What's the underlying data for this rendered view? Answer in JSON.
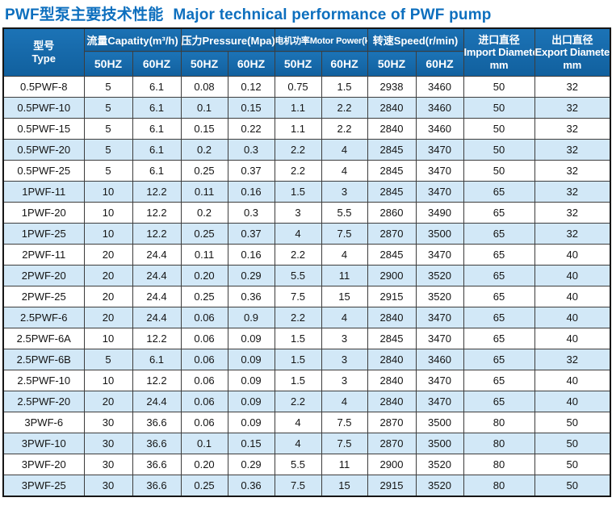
{
  "title": {
    "zh": "PWF型泵主要技术性能",
    "en": "Major technical performance of PWF pump"
  },
  "colors": {
    "title_text": "#0d6fbe",
    "header_bg": "#1467ac",
    "row_alt_bg": "#d2e8f7",
    "grid_line": "#3d3d3d"
  },
  "table": {
    "col_type": {
      "zh": "型号",
      "en": "Type"
    },
    "groups": [
      {
        "label": "流量Capatity(m³/h)",
        "sub": [
          "50HZ",
          "60HZ"
        ]
      },
      {
        "label": "压力Pressure(Mpa)",
        "sub": [
          "50HZ",
          "60HZ"
        ]
      },
      {
        "label": "电机功率Motor Power(kw)",
        "sub": [
          "50HZ",
          "60HZ"
        ]
      },
      {
        "label": "转速Speed(r/min)",
        "sub": [
          "50HZ",
          "60HZ"
        ]
      }
    ],
    "col_import": {
      "zh": "进口直径",
      "en": "Import Diameter",
      "unit": "mm"
    },
    "col_export": {
      "zh": "出口直径",
      "en": "Export Diameter",
      "unit": "mm"
    },
    "rows": [
      [
        "0.5PWF-8",
        "5",
        "6.1",
        "0.08",
        "0.12",
        "0.75",
        "1.5",
        "2938",
        "3460",
        "50",
        "32"
      ],
      [
        "0.5PWF-10",
        "5",
        "6.1",
        "0.1",
        "0.15",
        "1.1",
        "2.2",
        "2840",
        "3460",
        "50",
        "32"
      ],
      [
        "0.5PWF-15",
        "5",
        "6.1",
        "0.15",
        "0.22",
        "1.1",
        "2.2",
        "2840",
        "3460",
        "50",
        "32"
      ],
      [
        "0.5PWF-20",
        "5",
        "6.1",
        "0.2",
        "0.3",
        "2.2",
        "4",
        "2845",
        "3470",
        "50",
        "32"
      ],
      [
        "0.5PWF-25",
        "5",
        "6.1",
        "0.25",
        "0.37",
        "2.2",
        "4",
        "2845",
        "3470",
        "50",
        "32"
      ],
      [
        "1PWF-11",
        "10",
        "12.2",
        "0.11",
        "0.16",
        "1.5",
        "3",
        "2845",
        "3470",
        "65",
        "32"
      ],
      [
        "1PWF-20",
        "10",
        "12.2",
        "0.2",
        "0.3",
        "3",
        "5.5",
        "2860",
        "3490",
        "65",
        "32"
      ],
      [
        "1PWF-25",
        "10",
        "12.2",
        "0.25",
        "0.37",
        "4",
        "7.5",
        "2870",
        "3500",
        "65",
        "32"
      ],
      [
        "2PWF-11",
        "20",
        "24.4",
        "0.11",
        "0.16",
        "2.2",
        "4",
        "2845",
        "3470",
        "65",
        "40"
      ],
      [
        "2PWF-20",
        "20",
        "24.4",
        "0.20",
        "0.29",
        "5.5",
        "11",
        "2900",
        "3520",
        "65",
        "40"
      ],
      [
        "2PWF-25",
        "20",
        "24.4",
        "0.25",
        "0.36",
        "7.5",
        "15",
        "2915",
        "3520",
        "65",
        "40"
      ],
      [
        "2.5PWF-6",
        "20",
        "24.4",
        "0.06",
        "0.9",
        "2.2",
        "4",
        "2840",
        "3470",
        "65",
        "40"
      ],
      [
        "2.5PWF-6A",
        "10",
        "12.2",
        "0.06",
        "0.09",
        "1.5",
        "3",
        "2845",
        "3470",
        "65",
        "40"
      ],
      [
        "2.5PWF-6B",
        "5",
        "6.1",
        "0.06",
        "0.09",
        "1.5",
        "3",
        "2840",
        "3460",
        "65",
        "32"
      ],
      [
        "2.5PWF-10",
        "10",
        "12.2",
        "0.06",
        "0.09",
        "1.5",
        "3",
        "2840",
        "3470",
        "65",
        "40"
      ],
      [
        "2.5PWF-20",
        "20",
        "24.4",
        "0.06",
        "0.09",
        "2.2",
        "4",
        "2840",
        "3470",
        "65",
        "40"
      ],
      [
        "3PWF-6",
        "30",
        "36.6",
        "0.06",
        "0.09",
        "4",
        "7.5",
        "2870",
        "3500",
        "80",
        "50"
      ],
      [
        "3PWF-10",
        "30",
        "36.6",
        "0.1",
        "0.15",
        "4",
        "7.5",
        "2870",
        "3500",
        "80",
        "50"
      ],
      [
        "3PWF-20",
        "30",
        "36.6",
        "0.20",
        "0.29",
        "5.5",
        "11",
        "2900",
        "3520",
        "80",
        "50"
      ],
      [
        "3PWF-25",
        "30",
        "36.6",
        "0.25",
        "0.36",
        "7.5",
        "15",
        "2915",
        "3520",
        "80",
        "50"
      ]
    ]
  },
  "chart_data": {
    "type": "table",
    "title": "PWF型泵主要技术性能 Major technical performance of PWF pump",
    "columns": [
      "型号 Type",
      "流量Capatity(m³/h) 50HZ",
      "流量Capatity(m³/h) 60HZ",
      "压力Pressure(Mpa) 50HZ",
      "压力Pressure(Mpa) 60HZ",
      "电机功率Motor Power(kw) 50HZ",
      "电机功率Motor Power(kw) 60HZ",
      "转速Speed(r/min) 50HZ",
      "转速Speed(r/min) 60HZ",
      "进口直径 Import Diameter mm",
      "出口直径 Export Diameter mm"
    ]
  }
}
